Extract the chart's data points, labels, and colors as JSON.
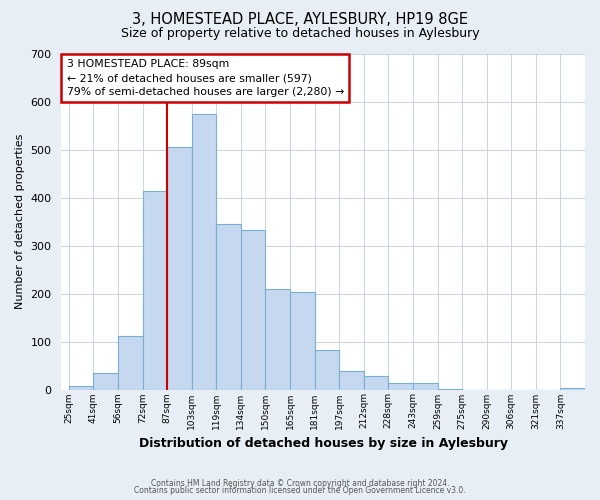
{
  "title": "3, HOMESTEAD PLACE, AYLESBURY, HP19 8GE",
  "subtitle": "Size of property relative to detached houses in Aylesbury",
  "xlabel": "Distribution of detached houses by size in Aylesbury",
  "ylabel": "Number of detached properties",
  "bar_labels": [
    "25sqm",
    "41sqm",
    "56sqm",
    "72sqm",
    "87sqm",
    "103sqm",
    "119sqm",
    "134sqm",
    "150sqm",
    "165sqm",
    "181sqm",
    "197sqm",
    "212sqm",
    "228sqm",
    "243sqm",
    "259sqm",
    "275sqm",
    "290sqm",
    "306sqm",
    "321sqm",
    "337sqm"
  ],
  "bar_heights": [
    8,
    35,
    112,
    415,
    507,
    575,
    345,
    332,
    210,
    203,
    83,
    38,
    28,
    13,
    13,
    2,
    0,
    0,
    0,
    0,
    3
  ],
  "bar_color": "#c5d8f0",
  "bar_edge_color": "#7aafd4",
  "annotation_title": "3 HOMESTEAD PLACE: 89sqm",
  "annotation_line1": "← 21% of detached houses are smaller (597)",
  "annotation_line2": "79% of semi-detached houses are larger (2,280) →",
  "ylim": [
    0,
    700
  ],
  "yticks": [
    0,
    100,
    200,
    300,
    400,
    500,
    600,
    700
  ],
  "footer1": "Contains HM Land Registry data © Crown copyright and database right 2024.",
  "footer2": "Contains public sector information licensed under the Open Government Licence v3.0.",
  "bg_color": "#e8eef5",
  "plot_bg_color": "#ffffff",
  "grid_color": "#c8d4e4",
  "annotation_box_color": "#ffffff",
  "annotation_box_edge": "#cc0000",
  "property_line_color": "#cc0000",
  "property_line_bar_index": 4
}
